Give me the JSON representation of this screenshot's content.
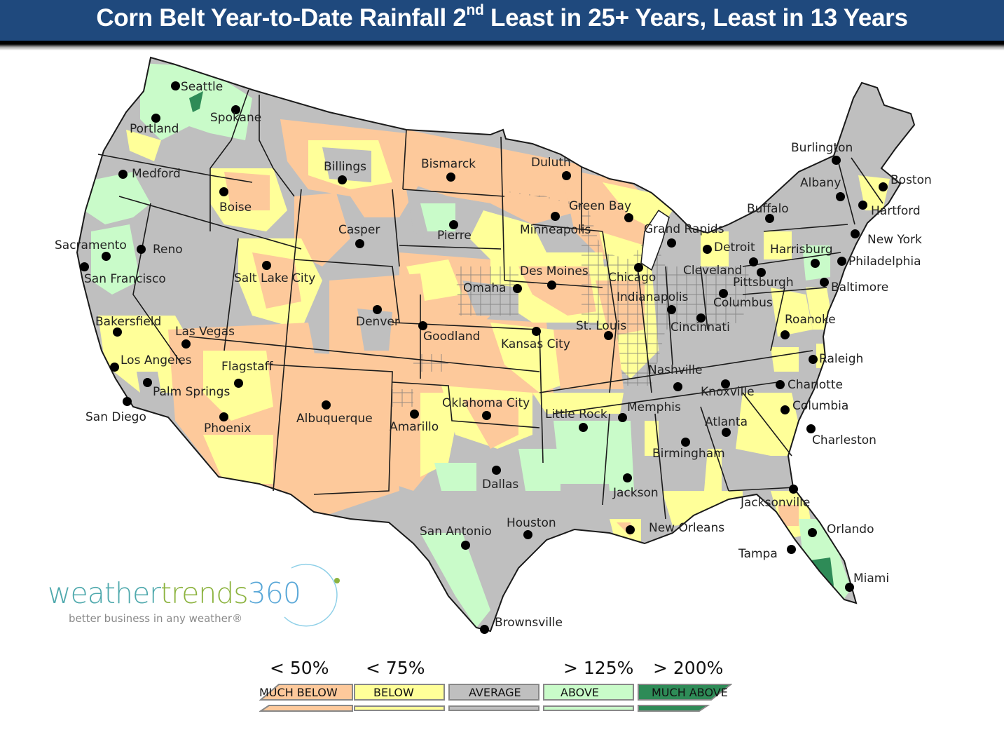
{
  "title": {
    "prefix": "Corn Belt Year-to-Date Rainfall 2",
    "superscript": "nd",
    "suffix": " Least in 25+ Years, Least in 13 Years",
    "background": "#1f497d"
  },
  "colors": {
    "much_below": "#fdc99b",
    "below": "#ffff99",
    "average": "#bfbfbf",
    "above": "#c9fbc9",
    "much_above": "#2e8b57",
    "state_border": "#1a1a1a"
  },
  "cities": [
    {
      "name": "Seattle",
      "dot": [
        250,
        122
      ],
      "label": [
        258,
        114
      ]
    },
    {
      "name": "Spokane",
      "dot": [
        336,
        156
      ],
      "label": [
        300,
        158
      ]
    },
    {
      "name": "Portland",
      "dot": [
        222,
        168
      ],
      "label": [
        185,
        174
      ]
    },
    {
      "name": "Medford",
      "dot": [
        175,
        248
      ],
      "label": [
        188,
        238
      ]
    },
    {
      "name": "Boise",
      "dot": [
        319,
        273
      ],
      "label": [
        313,
        286
      ]
    },
    {
      "name": "Billings",
      "dot": [
        488,
        256
      ],
      "label": [
        462,
        228
      ]
    },
    {
      "name": "Bismarck",
      "dot": [
        643,
        252
      ],
      "label": [
        601,
        224
      ]
    },
    {
      "name": "Duluth",
      "dot": [
        808,
        250
      ],
      "label": [
        758,
        222
      ]
    },
    {
      "name": "Minneapolis",
      "dot": [
        792,
        308
      ],
      "label": [
        742,
        318
      ]
    },
    {
      "name": "Green Bay",
      "dot": [
        897,
        310
      ],
      "label": [
        812,
        284
      ]
    },
    {
      "name": "Pierre",
      "dot": [
        647,
        320
      ],
      "label": [
        624,
        326
      ]
    },
    {
      "name": "Casper",
      "dot": [
        513,
        347
      ],
      "label": [
        483,
        318
      ]
    },
    {
      "name": "Sacramento",
      "dot": [
        151,
        365
      ],
      "label": [
        78,
        340
      ]
    },
    {
      "name": "Reno",
      "dot": [
        201,
        355
      ],
      "label": [
        218,
        346
      ]
    },
    {
      "name": "San Francisco",
      "dot": [
        120,
        380
      ],
      "label": [
        120,
        388
      ]
    },
    {
      "name": "Salt Lake City",
      "dot": [
        380,
        378
      ],
      "label": [
        334,
        387
      ]
    },
    {
      "name": "Des Moines",
      "dot": [
        787,
        406
      ],
      "label": [
        742,
        377
      ]
    },
    {
      "name": "Omaha",
      "dot": [
        738,
        411
      ],
      "label": [
        661,
        401
      ]
    },
    {
      "name": "Chicago",
      "dot": [
        911,
        381
      ],
      "label": [
        868,
        386
      ]
    },
    {
      "name": "Grand Rapids",
      "dot": [
        958,
        346
      ],
      "label": [
        919,
        317
      ]
    },
    {
      "name": "Detroit",
      "dot": [
        1009,
        355
      ],
      "label": [
        1019,
        343
      ]
    },
    {
      "name": "Cleveland",
      "dot": [
        1075,
        373
      ],
      "label": [
        975,
        376
      ]
    },
    {
      "name": "Indianapolis",
      "dot": [
        958,
        441
      ],
      "label": [
        880,
        414
      ]
    },
    {
      "name": "Columbus",
      "dot": [
        1032,
        418
      ],
      "label": [
        1018,
        422
      ]
    },
    {
      "name": "Pittsburgh",
      "dot": [
        1086,
        388
      ],
      "label": [
        1046,
        393
      ]
    },
    {
      "name": "Cincinnati",
      "dot": [
        1000,
        453
      ],
      "label": [
        957,
        457
      ]
    },
    {
      "name": "Denver",
      "dot": [
        538,
        441
      ],
      "label": [
        508,
        449
      ]
    },
    {
      "name": "Goodland",
      "dot": [
        603,
        464
      ],
      "label": [
        604,
        470
      ]
    },
    {
      "name": "Kansas City",
      "dot": [
        765,
        472
      ],
      "label": [
        715,
        481
      ]
    },
    {
      "name": "St. Louis",
      "dot": [
        868,
        478
      ],
      "label": [
        822,
        455
      ]
    },
    {
      "name": "Bakersfield",
      "dot": [
        167,
        473
      ],
      "label": [
        136,
        449
      ]
    },
    {
      "name": "Las Vegas",
      "dot": [
        265,
        490
      ],
      "label": [
        250,
        463
      ]
    },
    {
      "name": "Los Angeles",
      "dot": [
        163,
        523
      ],
      "label": [
        172,
        504
      ]
    },
    {
      "name": "Palm Springs",
      "dot": [
        210,
        545
      ],
      "label": [
        218,
        549
      ]
    },
    {
      "name": "San Diego",
      "dot": [
        181,
        572
      ],
      "label": [
        122,
        585
      ]
    },
    {
      "name": "Flagstaff",
      "dot": [
        340,
        546
      ],
      "label": [
        316,
        513
      ]
    },
    {
      "name": "Phoenix",
      "dot": [
        319,
        594
      ],
      "label": [
        291,
        601
      ]
    },
    {
      "name": "Albuquerque",
      "dot": [
        465,
        577
      ],
      "label": [
        423,
        587
      ]
    },
    {
      "name": "Amarillo",
      "dot": [
        591,
        590
      ],
      "label": [
        556,
        599
      ]
    },
    {
      "name": "Oklahoma City",
      "dot": [
        694,
        592
      ],
      "label": [
        631,
        565
      ]
    },
    {
      "name": "Little Rock",
      "dot": [
        832,
        609
      ],
      "label": [
        778,
        581
      ]
    },
    {
      "name": "Memphis",
      "dot": [
        888,
        595
      ],
      "label": [
        895,
        571
      ]
    },
    {
      "name": "Nashville",
      "dot": [
        967,
        551
      ],
      "label": [
        925,
        518
      ]
    },
    {
      "name": "Knoxville",
      "dot": [
        1035,
        547
      ],
      "label": [
        1000,
        549
      ]
    },
    {
      "name": "Charlotte",
      "dot": [
        1113,
        548
      ],
      "label": [
        1124,
        539
      ]
    },
    {
      "name": "Raleigh",
      "dot": [
        1160,
        512
      ],
      "label": [
        1169,
        502
      ]
    },
    {
      "name": "Columbia",
      "dot": [
        1120,
        584
      ],
      "label": [
        1131,
        569
      ]
    },
    {
      "name": "Atlanta",
      "dot": [
        1036,
        616
      ],
      "label": [
        1006,
        592
      ]
    },
    {
      "name": "Charleston",
      "dot": [
        1157,
        611
      ],
      "label": [
        1159,
        618
      ]
    },
    {
      "name": "Birmingham",
      "dot": [
        978,
        630
      ],
      "label": [
        931,
        637
      ]
    },
    {
      "name": "Jackson",
      "dot": [
        895,
        681
      ],
      "label": [
        875,
        693
      ]
    },
    {
      "name": "Dallas",
      "dot": [
        708,
        670
      ],
      "label": [
        688,
        681
      ]
    },
    {
      "name": "Jacksonville",
      "dot": [
        1132,
        697
      ],
      "label": [
        1057,
        707
      ]
    },
    {
      "name": "New Orleans",
      "dot": [
        899,
        755
      ],
      "label": [
        926,
        743
      ]
    },
    {
      "name": "Houston",
      "dot": [
        753,
        762
      ],
      "label": [
        723,
        736
      ]
    },
    {
      "name": "San Antonio",
      "dot": [
        664,
        777
      ],
      "label": [
        599,
        748
      ]
    },
    {
      "name": "Orlando",
      "dot": [
        1159,
        759
      ],
      "label": [
        1180,
        745
      ]
    },
    {
      "name": "Tampa",
      "dot": [
        1129,
        783
      ],
      "label": [
        1054,
        780
      ]
    },
    {
      "name": "Miami",
      "dot": [
        1212,
        837
      ],
      "label": [
        1218,
        815
      ]
    },
    {
      "name": "Brownsville",
      "dot": [
        691,
        897
      ],
      "label": [
        706,
        878
      ]
    },
    {
      "name": "Burlington",
      "dot": [
        1193,
        228
      ],
      "label": [
        1129,
        201
      ]
    },
    {
      "name": "Albany",
      "dot": [
        1199,
        280
      ],
      "label": [
        1142,
        251
      ]
    },
    {
      "name": "Buffalo",
      "dot": [
        1098,
        311
      ],
      "label": [
        1066,
        288
      ]
    },
    {
      "name": "Boston",
      "dot": [
        1260,
        266
      ],
      "label": [
        1271,
        247
      ]
    },
    {
      "name": "Hartford",
      "dot": [
        1231,
        292
      ],
      "label": [
        1243,
        291
      ]
    },
    {
      "name": "New York",
      "dot": [
        1220,
        333
      ],
      "label": [
        1238,
        332
      ]
    },
    {
      "name": "Harrisburg",
      "dot": [
        1163,
        375
      ],
      "label": [
        1099,
        346
      ]
    },
    {
      "name": "Philadelphia",
      "dot": [
        1201,
        372
      ],
      "label": [
        1211,
        363
      ]
    },
    {
      "name": "Baltimore",
      "dot": [
        1176,
        402
      ],
      "label": [
        1186,
        400
      ]
    },
    {
      "name": "Roanoke",
      "dot": [
        1120,
        477
      ],
      "label": [
        1120,
        446
      ]
    }
  ],
  "logo": {
    "word_part1": "weather",
    "word_part2": "trends",
    "word_part3": "360",
    "tagline": "better business in any weather®",
    "color1": "#4fa9ad",
    "color2": "#8cb33f",
    "color3": "#5aa8d8"
  },
  "legend": {
    "items": [
      {
        "key": "much_below",
        "threshold": "< 50%",
        "label": "MUCH BELOW",
        "color": "#fdc99b"
      },
      {
        "key": "below",
        "threshold": "< 75%",
        "label": "BELOW",
        "color": "#ffff99"
      },
      {
        "key": "average",
        "threshold": "",
        "label": "AVERAGE",
        "color": "#bfbfbf"
      },
      {
        "key": "above",
        "threshold": "> 125%",
        "label": "ABOVE",
        "color": "#c9fbc9"
      },
      {
        "key": "much_above",
        "threshold": "> 200%",
        "label": "MUCH ABOVE",
        "color": "#2e8b57"
      }
    ]
  }
}
